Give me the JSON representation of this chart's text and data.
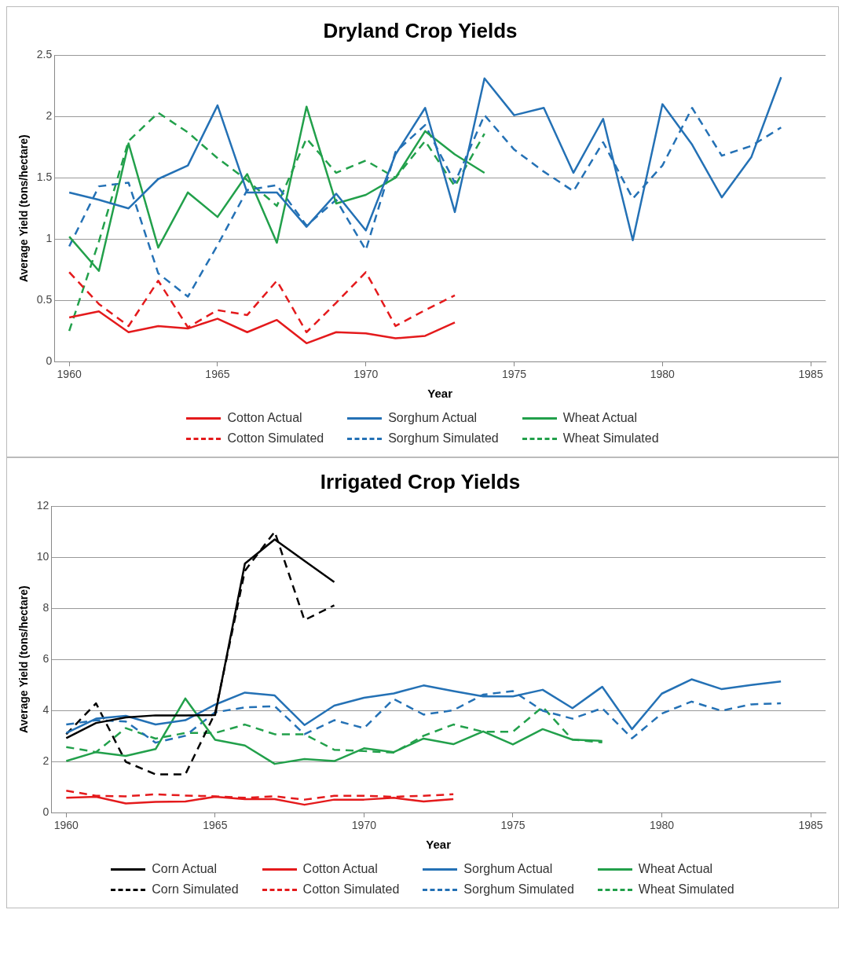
{
  "chart_data": [
    {
      "type": "line",
      "title": "Dryland Crop Yields",
      "xlabel": "Year",
      "ylabel": "Average Yield (tons/hectare)",
      "x": [
        1960,
        1961,
        1962,
        1963,
        1964,
        1965,
        1966,
        1967,
        1968,
        1969,
        1970,
        1971,
        1972,
        1973,
        1974,
        1975,
        1976,
        1977,
        1978,
        1979,
        1980,
        1981,
        1982,
        1983,
        1984
      ],
      "xlim": [
        1959.5,
        1985.5
      ],
      "xticks": [
        1960,
        1965,
        1970,
        1975,
        1980,
        1985
      ],
      "ylim": [
        0,
        2.5
      ],
      "yticks": [
        0,
        0.5,
        1,
        1.5,
        2,
        2.5
      ],
      "grid": "y",
      "legend": "bottom",
      "series": [
        {
          "name": "Cotton Actual",
          "color": "#e41a1c",
          "line_style": "solid",
          "values": [
            0.36,
            0.41,
            0.24,
            0.29,
            0.27,
            0.35,
            0.24,
            0.34,
            0.15,
            0.24,
            0.23,
            0.19,
            0.21,
            0.32,
            null,
            null,
            null,
            null,
            null,
            null,
            null,
            null,
            null,
            null,
            null
          ]
        },
        {
          "name": "Sorghum Actual",
          "color": "#2471b5",
          "line_style": "solid",
          "values": [
            1.38,
            1.32,
            1.25,
            1.49,
            1.6,
            2.09,
            1.38,
            1.38,
            1.1,
            1.37,
            1.07,
            1.69,
            2.07,
            1.22,
            2.31,
            2.01,
            2.07,
            1.54,
            1.98,
            0.99,
            2.1,
            1.77,
            1.34,
            1.67,
            2.32
          ]
        },
        {
          "name": "Wheat Actual",
          "color": "#22a04b",
          "line_style": "solid",
          "values": [
            1.02,
            0.74,
            1.78,
            0.93,
            1.38,
            1.18,
            1.53,
            0.97,
            2.08,
            1.29,
            1.36,
            1.5,
            1.88,
            1.69,
            1.54,
            null,
            null,
            null,
            null,
            null,
            null,
            null,
            null,
            null,
            null
          ]
        },
        {
          "name": "Cotton Simulated",
          "color": "#e41a1c",
          "line_style": "dashed",
          "values": [
            0.73,
            0.47,
            0.29,
            0.66,
            0.28,
            0.42,
            0.38,
            0.66,
            0.24,
            0.48,
            0.73,
            0.29,
            0.42,
            0.54,
            null,
            null,
            null,
            null,
            null,
            null,
            null,
            null,
            null,
            null,
            null
          ]
        },
        {
          "name": "Sorghum Simulated",
          "color": "#2471b5",
          "line_style": "dashed",
          "values": [
            0.94,
            1.43,
            1.46,
            0.72,
            0.53,
            0.95,
            1.4,
            1.44,
            1.11,
            1.32,
            0.91,
            1.71,
            1.93,
            1.46,
            2.01,
            1.73,
            1.55,
            1.39,
            1.79,
            1.33,
            1.6,
            2.07,
            1.68,
            1.76,
            1.91
          ]
        },
        {
          "name": "Wheat Simulated",
          "color": "#22a04b",
          "line_style": "dashed",
          "values": [
            0.25,
            0.98,
            1.8,
            2.03,
            1.87,
            1.66,
            1.48,
            1.27,
            1.82,
            1.54,
            1.64,
            1.5,
            1.8,
            1.43,
            1.86,
            null,
            null,
            null,
            null,
            null,
            null,
            null,
            null,
            null,
            null
          ]
        }
      ]
    },
    {
      "type": "line",
      "title": "Irrigated Crop Yields",
      "xlabel": "Year",
      "ylabel": "Average Yield (tons/hectare)",
      "x": [
        1960,
        1961,
        1962,
        1963,
        1964,
        1965,
        1966,
        1967,
        1968,
        1969,
        1970,
        1971,
        1972,
        1973,
        1974,
        1975,
        1976,
        1977,
        1978,
        1979,
        1980,
        1981,
        1982,
        1983,
        1984
      ],
      "xlim": [
        1959.5,
        1985.5
      ],
      "xticks": [
        1960,
        1965,
        1970,
        1975,
        1980,
        1985
      ],
      "ylim": [
        0,
        12
      ],
      "yticks": [
        0,
        2,
        4,
        6,
        8,
        10,
        12
      ],
      "grid": "y",
      "legend": "bottom",
      "series": [
        {
          "name": "Corn Actual",
          "color": "#000000",
          "line_style": "solid",
          "values": [
            2.92,
            3.51,
            3.73,
            3.81,
            3.81,
            3.82,
            9.75,
            10.7,
            9.86,
            9.03,
            null,
            null,
            null,
            null,
            null,
            null,
            null,
            null,
            null,
            null,
            null,
            null,
            null,
            null,
            null
          ]
        },
        {
          "name": "Cotton Actual",
          "color": "#e41a1c",
          "line_style": "solid",
          "values": [
            0.58,
            0.62,
            0.36,
            0.42,
            0.44,
            0.62,
            0.53,
            0.53,
            0.31,
            0.51,
            0.51,
            0.58,
            0.44,
            0.53,
            null,
            null,
            null,
            null,
            null,
            null,
            null,
            null,
            null,
            null,
            null
          ]
        },
        {
          "name": "Sorghum Actual",
          "color": "#2471b5",
          "line_style": "solid",
          "values": [
            3.12,
            3.68,
            3.79,
            3.45,
            3.62,
            4.23,
            4.7,
            4.59,
            3.43,
            4.19,
            4.5,
            4.67,
            4.98,
            4.76,
            4.55,
            4.55,
            4.81,
            4.09,
            4.93,
            3.27,
            4.66,
            5.22,
            4.84,
            5.0,
            5.14
          ]
        },
        {
          "name": "Wheat Actual",
          "color": "#22a04b",
          "line_style": "solid",
          "values": [
            2.02,
            2.37,
            2.22,
            2.49,
            4.47,
            2.85,
            2.63,
            1.91,
            2.1,
            2.02,
            2.52,
            2.37,
            2.9,
            2.68,
            3.18,
            2.67,
            3.27,
            2.86,
            2.81,
            null,
            null,
            null,
            null,
            null,
            null
          ]
        },
        {
          "name": "Corn Simulated",
          "color": "#000000",
          "line_style": "dashed",
          "values": [
            3.07,
            4.28,
            1.99,
            1.5,
            1.5,
            3.9,
            9.47,
            11.0,
            7.54,
            8.12,
            null,
            null,
            null,
            null,
            null,
            null,
            null,
            null,
            null,
            null,
            null,
            null,
            null,
            null,
            null
          ]
        },
        {
          "name": "Cotton Simulated",
          "color": "#e41a1c",
          "line_style": "dashed",
          "values": [
            0.86,
            0.66,
            0.64,
            0.72,
            0.67,
            0.64,
            0.58,
            0.64,
            0.51,
            0.66,
            0.66,
            0.62,
            0.66,
            0.72,
            null,
            null,
            null,
            null,
            null,
            null,
            null,
            null,
            null,
            null,
            null
          ]
        },
        {
          "name": "Sorghum Simulated",
          "color": "#2471b5",
          "line_style": "dashed",
          "values": [
            3.45,
            3.62,
            3.57,
            2.74,
            3.01,
            3.93,
            4.12,
            4.17,
            3.07,
            3.62,
            3.31,
            4.45,
            3.84,
            4.01,
            4.62,
            4.76,
            3.99,
            3.68,
            4.09,
            2.91,
            3.88,
            4.35,
            3.99,
            4.24,
            4.28
          ]
        },
        {
          "name": "Wheat Simulated",
          "color": "#22a04b",
          "line_style": "dashed",
          "values": [
            2.57,
            2.37,
            3.31,
            2.9,
            3.12,
            3.12,
            3.45,
            3.07,
            3.07,
            2.46,
            2.41,
            2.35,
            3.01,
            3.45,
            3.17,
            3.17,
            4.14,
            2.86,
            2.75,
            null,
            null,
            null,
            null,
            null,
            null
          ]
        }
      ]
    }
  ]
}
